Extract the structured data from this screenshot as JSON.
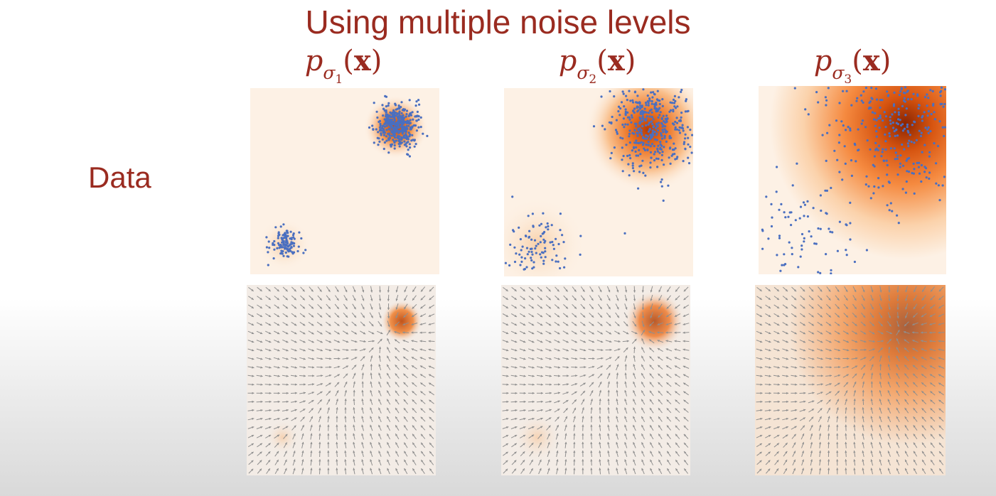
{
  "slide": {
    "title": "Using multiple noise levels",
    "row_label": "Data"
  },
  "columns": [
    {
      "label_p": "p",
      "label_sigma": "σ",
      "label_index": "1",
      "label_open": "(",
      "label_x": "x",
      "label_close": ")"
    },
    {
      "label_p": "p",
      "label_sigma": "σ",
      "label_index": "2",
      "label_open": "(",
      "label_x": "x",
      "label_close": ")"
    },
    {
      "label_p": "p",
      "label_sigma": "σ",
      "label_index": "3",
      "label_open": "(",
      "label_x": "x",
      "label_close": ")"
    }
  ],
  "panels": [
    {
      "kind": "density-with-samples",
      "noise_level": 1,
      "colormap": "oranges",
      "dot_color": "#4a6fc0"
    },
    {
      "kind": "density-with-samples",
      "noise_level": 2,
      "colormap": "oranges",
      "dot_color": "#4a6fc0"
    },
    {
      "kind": "density-with-samples",
      "noise_level": 3,
      "colormap": "oranges",
      "dot_color": "#4a6fc0"
    },
    {
      "kind": "score-vector-field",
      "noise_level": 1,
      "colormap": "oranges",
      "arrow_color": "#8f8f8f"
    },
    {
      "kind": "score-vector-field",
      "noise_level": 2,
      "colormap": "oranges",
      "arrow_color": "#8f8f8f"
    },
    {
      "kind": "score-vector-field",
      "noise_level": 3,
      "colormap": "oranges",
      "arrow_color": "#8f8f8f"
    }
  ]
}
